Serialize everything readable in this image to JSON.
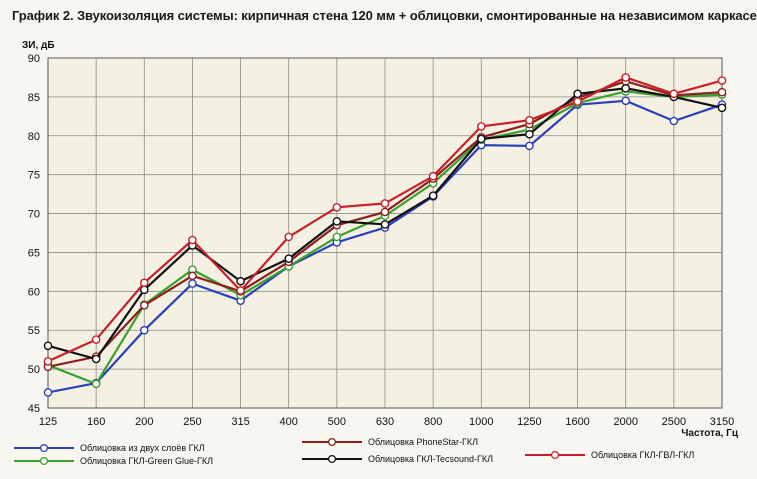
{
  "chart_data": {
    "type": "line",
    "title": "График 2. Звукоизоляция системы: кирпичная стена 120 мм + облицовки, смонтированные на независимом каркасе",
    "ylabel": "ЗИ, дБ",
    "xlabel": "Частота, Гц",
    "ylim": [
      45,
      90
    ],
    "yticks": [
      45,
      50,
      55,
      60,
      65,
      70,
      75,
      80,
      85,
      90
    ],
    "grid": true,
    "categories": [
      "125",
      "160",
      "200",
      "250",
      "315",
      "400",
      "500",
      "630",
      "800",
      "1000",
      "1250",
      "1600",
      "2000",
      "2500",
      "3150"
    ],
    "series": [
      {
        "name": "Облицовка из двух слоёв ГКЛ",
        "color": "#2b3fb8",
        "values": [
          47.0,
          48.2,
          55.0,
          61.0,
          58.8,
          63.2,
          66.3,
          68.2,
          72.2,
          78.8,
          78.7,
          84.0,
          84.5,
          81.9,
          84.0
        ]
      },
      {
        "name": "Облицовка ГКЛ-Green Glue-ГКЛ",
        "color": "#3aa02e",
        "values": [
          50.5,
          48.1,
          58.3,
          62.8,
          59.5,
          63.2,
          67.0,
          69.7,
          73.9,
          79.5,
          80.8,
          84.2,
          85.7,
          85.0,
          85.3
        ]
      },
      {
        "name": "Облицовка PhoneStar-ГКЛ",
        "color": "#8c1f1f",
        "values": [
          50.3,
          51.6,
          58.2,
          62.0,
          60.0,
          63.8,
          68.5,
          70.2,
          74.5,
          79.8,
          81.5,
          84.9,
          87.0,
          85.2,
          85.6
        ]
      },
      {
        "name": "Облицовка ГКЛ-Tecsound-ГКЛ",
        "color": "#111111",
        "values": [
          53.0,
          51.3,
          60.2,
          65.9,
          61.3,
          64.2,
          69.0,
          68.6,
          72.3,
          79.6,
          80.2,
          85.4,
          86.1,
          85.0,
          83.6
        ]
      },
      {
        "name": "Облицовка ГКЛ-ГВЛ-ГКЛ",
        "color": "#c8202a",
        "values": [
          51.0,
          53.8,
          61.1,
          66.6,
          60.1,
          67.0,
          70.8,
          71.3,
          74.8,
          81.2,
          82.0,
          84.4,
          87.5,
          85.4,
          87.1
        ]
      }
    ]
  }
}
